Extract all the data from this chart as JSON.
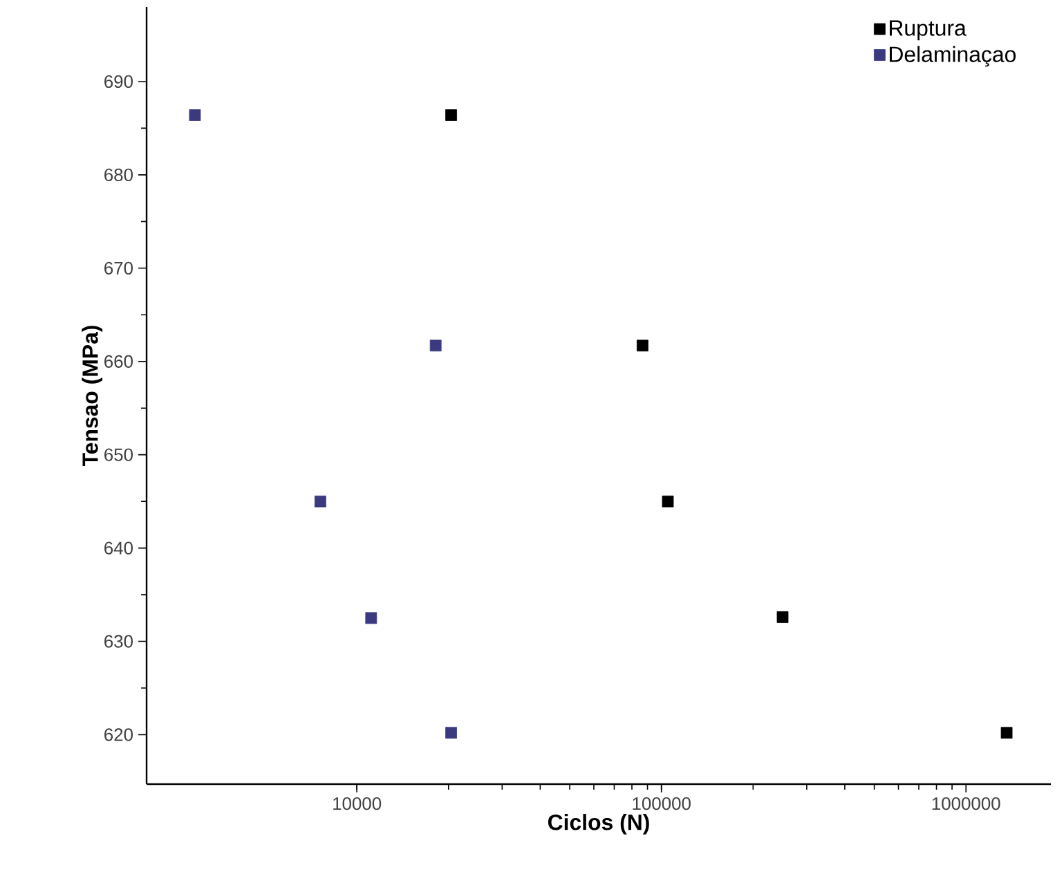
{
  "chart_data": {
    "type": "scatter",
    "xlabel": "Ciclos (N)",
    "ylabel": "Tensao (MPa)",
    "log": "x",
    "marker": "square",
    "legend": "top right",
    "xlim": [
      2040,
      1900000
    ],
    "ylim": [
      614.7,
      698
    ],
    "xticks": [
      10000,
      100000,
      1000000
    ],
    "yticks": [
      620,
      630,
      640,
      650,
      660,
      670,
      680,
      690
    ],
    "series": [
      {
        "name": "Ruptura",
        "color": "#000000",
        "x": [
          20400,
          86700,
          105000,
          250000,
          1360000
        ],
        "values": [
          686.4,
          661.7,
          645.0,
          632.6,
          620.2
        ]
      },
      {
        "name": "Delaminaçao",
        "color": "#3b3a80",
        "x": [
          2940,
          18150,
          7590,
          11140,
          20400
        ],
        "values": [
          686.4,
          661.7,
          645.0,
          632.5,
          620.2
        ]
      }
    ]
  }
}
